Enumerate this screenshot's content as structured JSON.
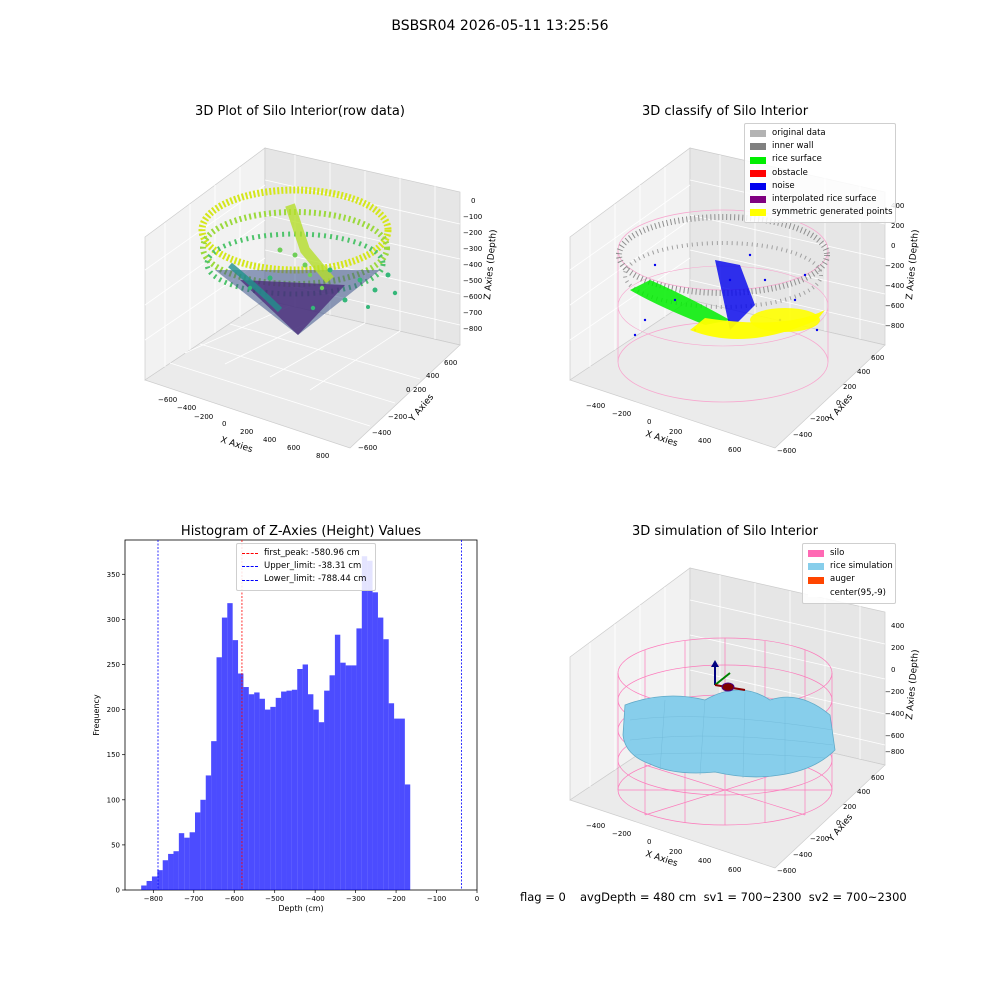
{
  "suptitle": "BSBSR04 2026-05-11 13:25:56",
  "panels": {
    "raw": {
      "title": "3D Plot of Silo Interior(row data)",
      "xlabel": "X Axies",
      "ylabel": "Y Axies",
      "zlabel": "Z Axies (Depth)",
      "xticks": [
        "−600",
        "−400",
        "−200",
        "0",
        "200",
        "400",
        "600",
        "800"
      ],
      "yticks": [
        "−600",
        "−400",
        "−200",
        "0",
        "200",
        "400",
        "600"
      ],
      "zticks": [
        "0",
        "−100",
        "−200",
        "−300",
        "−400",
        "−500",
        "−600",
        "−700",
        "−800"
      ]
    },
    "classify": {
      "title": "3D classify of Silo Interior",
      "xlabel": "X Axies",
      "ylabel": "Y Axies",
      "zlabel": "Z Axies (Depth)",
      "xticks": [
        "−400",
        "−200",
        "0",
        "200",
        "400",
        "600"
      ],
      "yticks": [
        "−600",
        "−400",
        "−200",
        "0",
        "200",
        "400",
        "600"
      ],
      "zticks": [
        "400",
        "200",
        "0",
        "−200",
        "−400",
        "−600",
        "−800"
      ],
      "legend": [
        {
          "label": "original data",
          "color": "#b3b3b3"
        },
        {
          "label": "inner wall",
          "color": "#808080"
        },
        {
          "label": "rice surface",
          "color": "#00ee00"
        },
        {
          "label": "obstacle",
          "color": "#ff0000"
        },
        {
          "label": "noise",
          "color": "#0000ee"
        },
        {
          "label": "interpolated rice surface",
          "color": "#800080"
        },
        {
          "label": "symmetric generated points",
          "color": "#ffff00"
        }
      ]
    },
    "simulation": {
      "title": "3D simulation of Silo Interior",
      "xlabel": "X Axies",
      "ylabel": "Y Axies",
      "zlabel": "Z Axies (Depth)",
      "xticks": [
        "−400",
        "−200",
        "0",
        "200",
        "400",
        "600"
      ],
      "yticks": [
        "−600",
        "−400",
        "−200",
        "0",
        "200",
        "400",
        "600"
      ],
      "zticks": [
        "400",
        "200",
        "0",
        "−200",
        "−400",
        "−600",
        "−800"
      ],
      "legend": [
        {
          "label": "silo",
          "color": "#ff69b4"
        },
        {
          "label": "rice simulation",
          "color": "#87ceeb"
        },
        {
          "label": "auger",
          "color": "#ff4500"
        },
        {
          "label": "center(95,-9)",
          "color": "#ffffff"
        }
      ]
    }
  },
  "footer": {
    "flag": "flag = 0",
    "stats": "avgDepth = 480 cm  sv1 = 700~2300  sv2 = 700~2300"
  },
  "chart_data": [
    {
      "type": "bar",
      "title": "Histogram of Z-Axies (Height) Values",
      "xlabel": "Depth (cm)",
      "ylabel": "Frequency",
      "xlim": [
        -870,
        0
      ],
      "ylim": [
        0,
        388
      ],
      "xticks": [
        -800,
        -700,
        -600,
        -500,
        -400,
        -300,
        -200,
        -100,
        0
      ],
      "yticks": [
        0,
        50,
        100,
        150,
        200,
        250,
        300,
        350
      ],
      "bar_color": "#0000ff",
      "bin_width": 13.3,
      "bin_starts": [
        -830,
        -816.7,
        -803.4,
        -790.1,
        -776.8,
        -763.5,
        -750.2,
        -736.9,
        -723.6,
        -710.3,
        -697,
        -683.7,
        -670.4,
        -657.1,
        -643.8,
        -630.5,
        -617.2,
        -603.9,
        -590.6,
        -577.3,
        -564,
        -550.7,
        -537.4,
        -524.1,
        -510.8,
        -497.5,
        -484.2,
        -470.9,
        -457.6,
        -444.3,
        -431,
        -417.7,
        -404.4,
        -391.1,
        -377.8,
        -364.5,
        -351.2,
        -337.9,
        -324.6,
        -311.3,
        -298,
        -284.7,
        -271.4,
        -258.1,
        -244.8,
        -231.5,
        -218.2,
        -204.9,
        -191.6,
        -178.3,
        -165,
        -151.7,
        -138.4,
        -125.1,
        -111.8,
        -98.5,
        -85.2,
        -71.9,
        -58.6,
        -45.3
      ],
      "values": [
        5,
        10,
        15,
        22,
        33,
        40,
        43,
        63,
        58,
        64,
        86,
        100,
        127,
        165,
        258,
        302,
        318,
        277,
        240,
        225,
        217,
        219,
        212,
        200,
        203,
        213,
        220,
        221,
        222,
        245,
        250,
        217,
        200,
        186,
        221,
        238,
        283,
        252,
        249,
        249,
        290,
        370,
        365,
        330,
        302,
        278,
        207,
        190,
        190,
        117,
        0,
        0,
        0,
        0,
        0,
        0,
        0,
        0,
        0,
        0
      ],
      "vlines": [
        {
          "label": "first_peak: -580.96 cm",
          "x": -580.96,
          "color": "#ff0000"
        },
        {
          "label": "Upper_limit: -38.31 cm",
          "x": -38.31,
          "color": "#0000ff"
        },
        {
          "label": "Lower_limit: -788.44 cm",
          "x": -788.44,
          "color": "#0000ff"
        }
      ]
    }
  ]
}
